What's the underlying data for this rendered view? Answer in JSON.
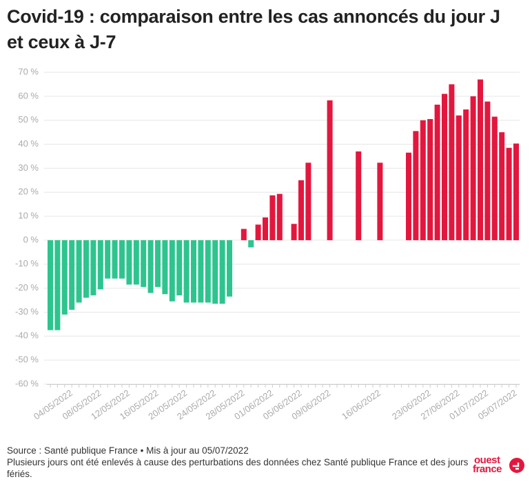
{
  "chart_data": {
    "type": "bar",
    "title": "Covid-19 : comparaison entre les cas annoncés du jour J et ceux à J-7",
    "source": "Source : Santé publique France • Mis à jour au 05/07/2022",
    "note": "Plusieurs jours ont été enlevés à cause des perturbations des données chez Santé publique France et des jours fériés.",
    "brand": [
      "ouest",
      "france"
    ],
    "positive_color": "#e3173e",
    "negative_color": "#2ec48f",
    "ylim": [
      -60,
      70
    ],
    "yticks": [
      {
        "value": 70,
        "label": "70 %"
      },
      {
        "value": 60,
        "label": "60 %"
      },
      {
        "value": 50,
        "label": "50 %"
      },
      {
        "value": 40,
        "label": "40 %"
      },
      {
        "value": 30,
        "label": "30 %"
      },
      {
        "value": 20,
        "label": "20 %"
      },
      {
        "value": 10,
        "label": "10 %"
      },
      {
        "value": 0,
        "label": "0 %"
      },
      {
        "value": -10,
        "label": "-10 %"
      },
      {
        "value": -20,
        "label": "-20 %"
      },
      {
        "value": -30,
        "label": "-30 %"
      },
      {
        "value": -40,
        "label": "-40 %"
      },
      {
        "value": -50,
        "label": "-50 %"
      },
      {
        "value": -60,
        "label": "-60 %"
      }
    ],
    "grid": true,
    "categories": [
      null,
      null,
      null,
      "04/05/2022",
      null,
      null,
      null,
      "08/05/2022",
      null,
      null,
      null,
      "12/05/2022",
      null,
      null,
      null,
      "16/05/2022",
      null,
      null,
      null,
      "20/05/2022",
      null,
      null,
      null,
      "24/05/2022",
      null,
      null,
      null,
      "28/05/2022",
      null,
      null,
      null,
      "01/06/2022",
      null,
      null,
      null,
      "05/06/2022",
      null,
      null,
      null,
      "09/06/2022",
      null,
      null,
      null,
      null,
      null,
      null,
      "16/06/2022",
      null,
      null,
      null,
      null,
      null,
      null,
      "23/06/2022",
      null,
      null,
      null,
      "27/06/2022",
      null,
      null,
      null,
      "01/07/2022",
      null,
      null,
      null,
      "05/07/2022"
    ],
    "values": [
      -37.5,
      -37.5,
      -31,
      -29,
      -26,
      -24,
      -23,
      -20.5,
      -16,
      -16,
      -16,
      -18.5,
      -18.5,
      -19.5,
      -22,
      -19.5,
      -22.5,
      -25.5,
      -23,
      -26,
      -26,
      -26,
      -26,
      -26.5,
      -26.5,
      -23.5,
      null,
      4.7,
      -3,
      6.5,
      9.5,
      18.7,
      19.3,
      null,
      6.8,
      25,
      32.3,
      null,
      null,
      58.3,
      null,
      null,
      null,
      37,
      null,
      null,
      32.3,
      null,
      null,
      null,
      36.5,
      45.5,
      50,
      50.5,
      56.5,
      61,
      65,
      52,
      54.5,
      60,
      67,
      57.8,
      51.5,
      45,
      38.5,
      40.3
    ]
  }
}
